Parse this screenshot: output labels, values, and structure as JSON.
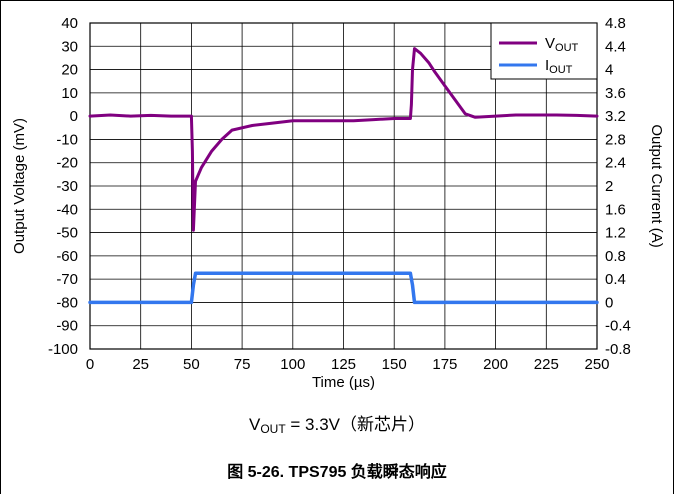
{
  "chart_data": {
    "type": "line",
    "xlabel": "Time (µs)",
    "ylabel_left": "Output Voltage (mV)",
    "ylabel_right": "Output Current (A)",
    "xlim": [
      0,
      250
    ],
    "ylim_left": [
      -100,
      40
    ],
    "ylim_right": [
      -0.8,
      4.8
    ],
    "x_ticks": [
      0,
      25,
      50,
      75,
      100,
      125,
      150,
      175,
      200,
      225,
      250
    ],
    "y_ticks_left": [
      40,
      30,
      20,
      10,
      0,
      -10,
      -20,
      -30,
      -40,
      -50,
      -60,
      -70,
      -80,
      -90,
      -100
    ],
    "y_ticks_right": [
      "4.8",
      "4.4",
      "4",
      "3.6",
      "3.2",
      "2.8",
      "2.4",
      "2",
      "1.6",
      "1.2",
      "0.8",
      "0.4",
      "0",
      "-0.4",
      "-0.8"
    ],
    "grid": true,
    "legend_position": "top-right",
    "series": [
      {
        "name": "V_OUT",
        "legend_main": "V",
        "legend_sub": "OUT",
        "color": "#800080",
        "axis": "left",
        "x": [
          0,
          10,
          20,
          30,
          40,
          50,
          50.5,
          51,
          52,
          55,
          60,
          65,
          70,
          80,
          90,
          100,
          110,
          120,
          130,
          140,
          150,
          158,
          158.5,
          159,
          160,
          163,
          167,
          170,
          175,
          180,
          185,
          190,
          200,
          210,
          220,
          230,
          240,
          250
        ],
        "y": [
          0,
          0.5,
          0,
          0.3,
          0,
          0,
          -15,
          -49,
          -28,
          -22,
          -15,
          -10,
          -6,
          -4,
          -3,
          -2,
          -2,
          -2,
          -2,
          -1.5,
          -1,
          -1,
          5,
          20,
          29,
          27,
          23,
          19,
          13,
          7,
          1,
          -0.5,
          0,
          0.5,
          0.5,
          0.5,
          0.3,
          0
        ]
      },
      {
        "name": "I_OUT",
        "legend_main": "I",
        "legend_sub": "OUT",
        "color": "#3377ee",
        "axis": "right",
        "x": [
          0,
          50,
          51,
          52,
          158,
          159,
          160,
          250
        ],
        "y": [
          0,
          0,
          0.3,
          0.5,
          0.5,
          0.3,
          0,
          0
        ]
      }
    ]
  },
  "caption": {
    "prefix": "V",
    "sub": "OUT",
    "suffix": " = 3.3V（新芯片）"
  },
  "figure_title": "图 5-26. TPS795 负载瞬态响应"
}
